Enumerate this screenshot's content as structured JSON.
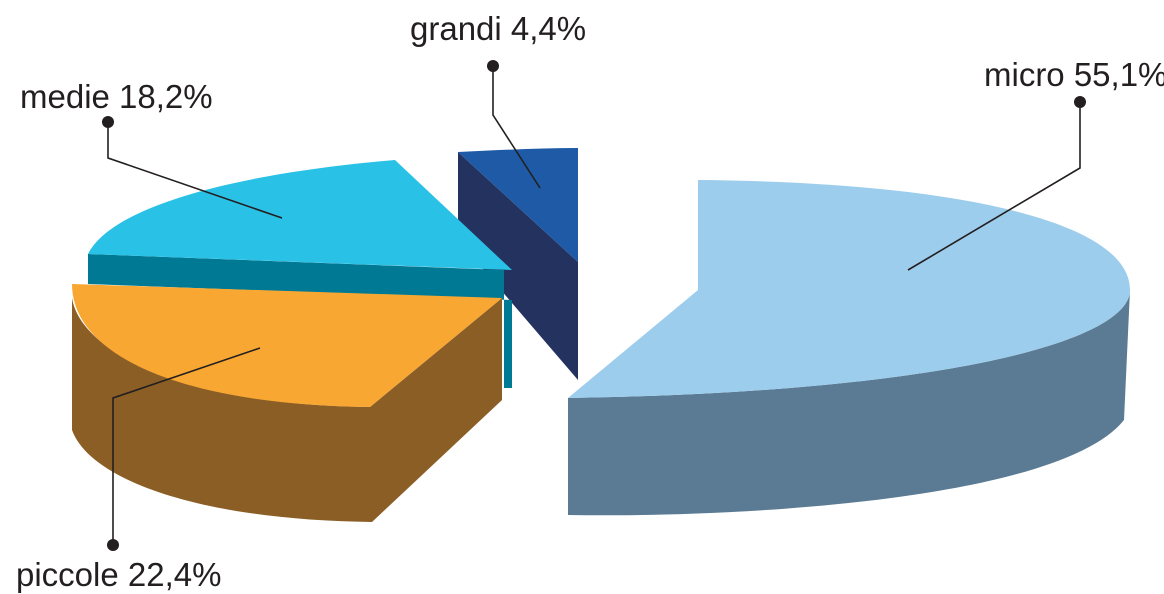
{
  "chart_data": {
    "type": "pie",
    "style": "3d-exploded",
    "categories": [
      "micro",
      "piccole",
      "medie",
      "grandi"
    ],
    "values": [
      55.1,
      22.4,
      18.2,
      4.4
    ],
    "labels": [
      "micro 55,1%",
      "piccole 22,4%",
      "medie 18,2%",
      "grandi 4,4%"
    ],
    "colors": {
      "micro": {
        "top": "#9dcdec",
        "side": "#5a7b93"
      },
      "piccole": {
        "top": "#f8a733",
        "side": "#8b5e26"
      },
      "medie": {
        "top": "#29c1e6",
        "side": "#007a94"
      },
      "grandi": {
        "top": "#1e5aa6",
        "side": "#23325f"
      }
    },
    "legend": "callout-labels"
  }
}
